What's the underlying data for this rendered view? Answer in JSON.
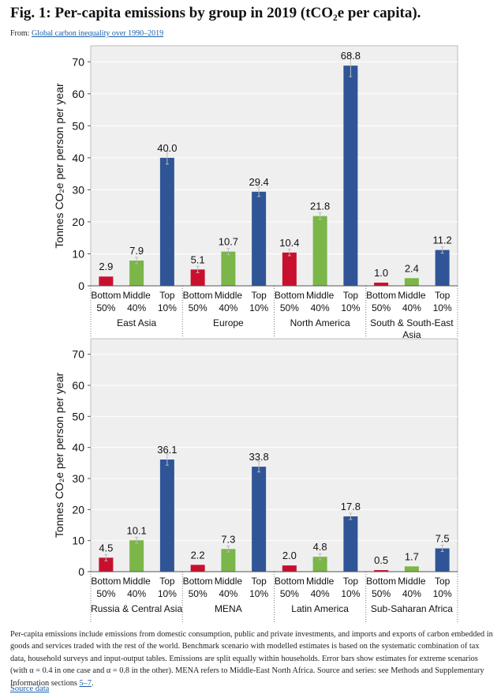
{
  "header": {
    "title": "Fig. 1: Per-capita emissions by group in 2019 (tCO₂e per capita).",
    "from_prefix": "From: ",
    "from_link": "Global carbon inequality over 1990–2019"
  },
  "caption": {
    "text": "Per-capita emissions include emissions from domestic consumption, public and private investments, and imports and exports of carbon embedded in goods and services traded with the rest of the world. Benchmark scenario with modelled estimates is based on the systematic combination of tax data, household surveys and input-output tables. Emissions are split equally within households. Error bars show estimates for extreme scenarios (with α = 0.4 in one case and α = 0.8 in the other). MENA refers to Middle-East North Africa. Source and series: see Methods and Supplementary Information sections ",
    "link": "5–7",
    "end": "."
  },
  "source_link": "Source data",
  "colors": {
    "bottom": "#c8102e",
    "middle": "#7ab648",
    "top": "#2f5597",
    "panel_bg": "#efefef",
    "grid": "#ffffff"
  },
  "chart_data": [
    {
      "type": "bar",
      "ylabel": "Tonnes CO₂e per person per year",
      "ylim": [
        0,
        75
      ],
      "yticks": [
        0,
        10,
        20,
        30,
        40,
        50,
        60,
        70
      ],
      "group_labels": [
        [
          "Bottom",
          "50%"
        ],
        [
          "Middle",
          "40%"
        ],
        [
          "Top",
          "10%"
        ]
      ],
      "regions": [
        {
          "name": [
            "East Asia"
          ],
          "values": [
            2.9,
            7.9,
            40.0
          ],
          "labels": [
            "2.9",
            "7.9",
            "40.0"
          ]
        },
        {
          "name": [
            "Europe"
          ],
          "values": [
            5.1,
            10.7,
            29.4
          ],
          "labels": [
            "5.1",
            "10.7",
            "29.4"
          ]
        },
        {
          "name": [
            "North America"
          ],
          "values": [
            10.4,
            21.8,
            68.8
          ],
          "labels": [
            "10.4",
            "21.8",
            "68.8"
          ]
        },
        {
          "name": [
            "South & South-East",
            "Asia"
          ],
          "values": [
            1.0,
            2.4,
            11.2
          ],
          "labels": [
            "1.0",
            "2.4",
            "11.2"
          ]
        }
      ]
    },
    {
      "type": "bar",
      "ylabel": "Tonnes CO₂e per person per year",
      "ylim": [
        0,
        75
      ],
      "yticks": [
        0,
        10,
        20,
        30,
        40,
        50,
        60,
        70
      ],
      "group_labels": [
        [
          "Bottom",
          "50%"
        ],
        [
          "Middle",
          "40%"
        ],
        [
          "Top",
          "10%"
        ]
      ],
      "regions": [
        {
          "name": [
            "Russia & Central Asia"
          ],
          "values": [
            4.5,
            10.1,
            36.1
          ],
          "labels": [
            "4.5",
            "10.1",
            "36.1"
          ]
        },
        {
          "name": [
            "MENA"
          ],
          "values": [
            2.2,
            7.3,
            33.8
          ],
          "labels": [
            "2.2",
            "7.3",
            "33.8"
          ]
        },
        {
          "name": [
            "Latin America"
          ],
          "values": [
            2.0,
            4.8,
            17.8
          ],
          "labels": [
            "2.0",
            "4.8",
            "17.8"
          ]
        },
        {
          "name": [
            "Sub-Saharan Africa"
          ],
          "values": [
            0.5,
            1.7,
            7.5
          ],
          "labels": [
            "0.5",
            "1.7",
            "7.5"
          ]
        }
      ]
    }
  ]
}
